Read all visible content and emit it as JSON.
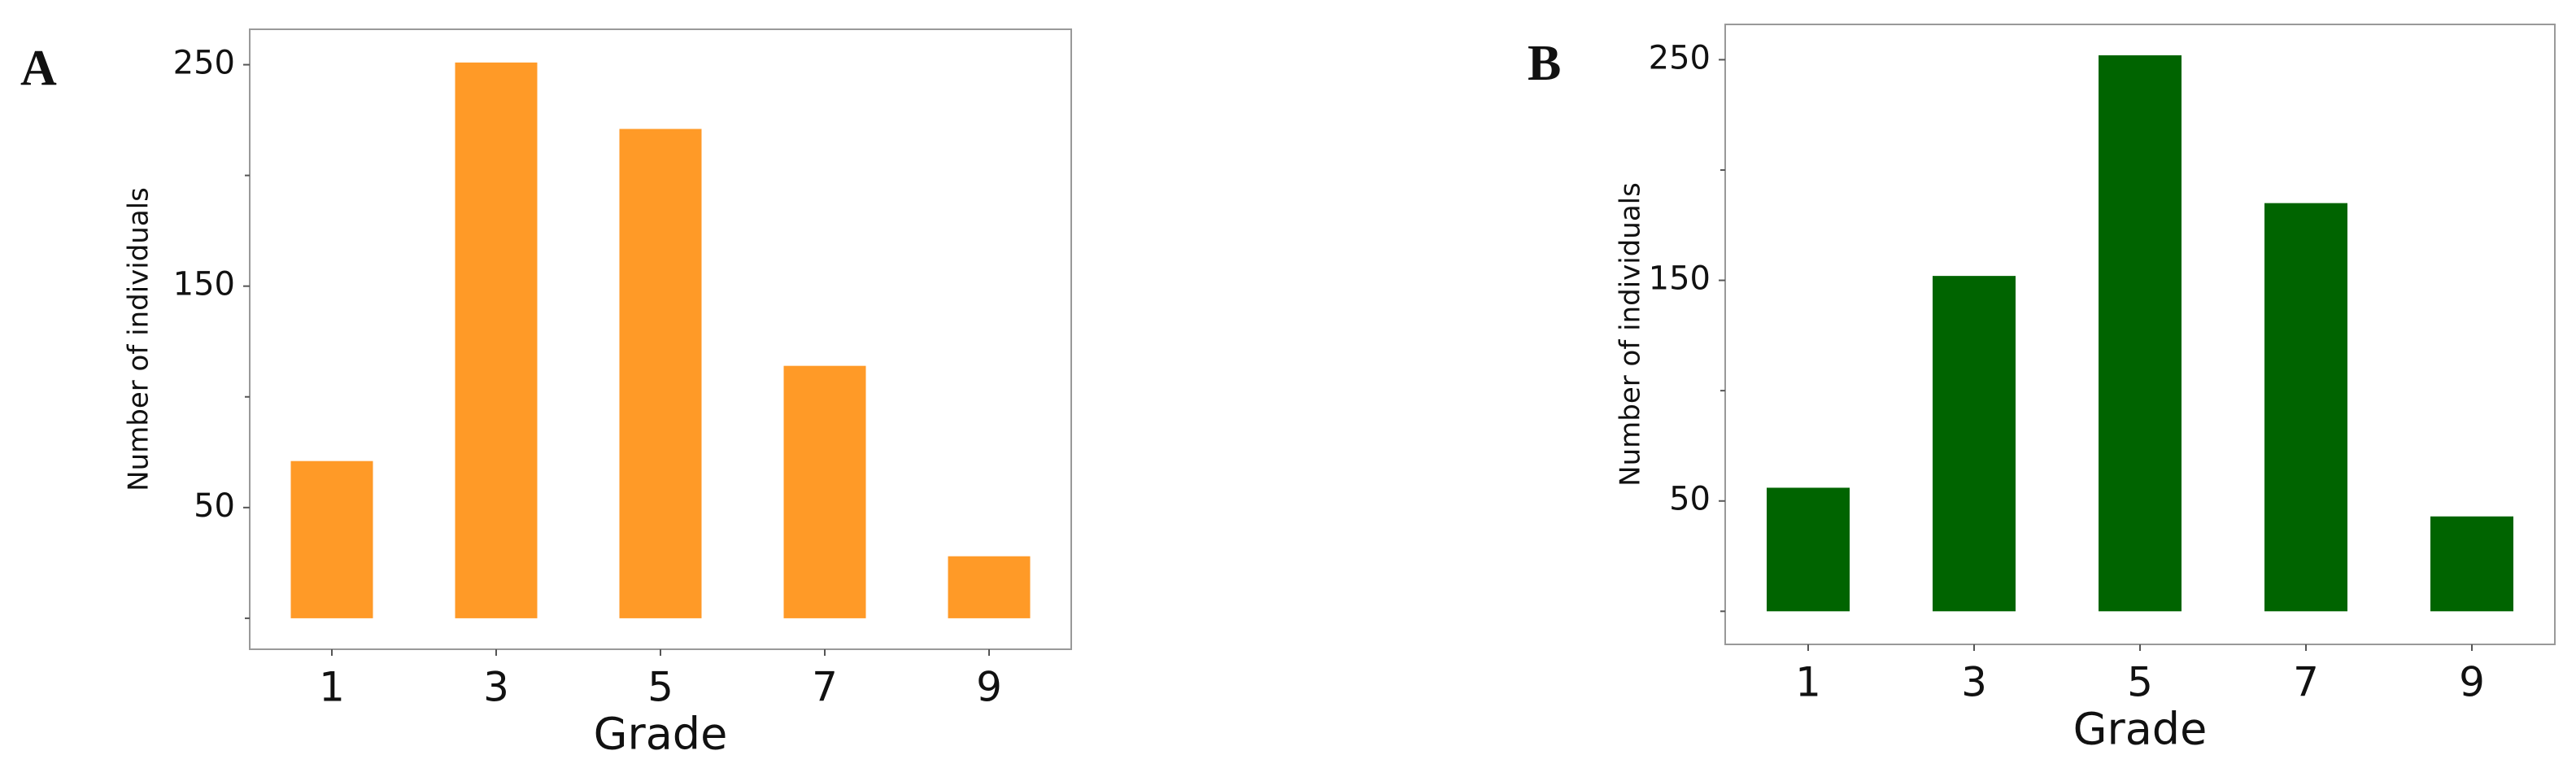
{
  "chart_data": [
    {
      "type": "bar",
      "panel_label": "A",
      "y_label": "Number of individuals",
      "x_label": "Grade",
      "categories": [
        "1",
        "3",
        "5",
        "7",
        "9"
      ],
      "values": [
        71,
        251,
        221,
        114,
        28
      ],
      "color": "#ff9a27",
      "ylim": [
        -14,
        266
      ],
      "yticks": [
        50,
        150,
        250
      ],
      "minor_yticks": [
        0,
        100,
        200
      ]
    },
    {
      "type": "bar",
      "panel_label": "B",
      "y_label": "Number of individuals",
      "x_label": "Grade",
      "categories": [
        "1",
        "3",
        "5",
        "7",
        "9"
      ],
      "values": [
        56,
        152,
        252,
        185,
        43
      ],
      "color": "#006400",
      "ylim": [
        -15,
        266
      ],
      "yticks": [
        50,
        150,
        250
      ],
      "minor_yticks": [
        0,
        100,
        200
      ]
    }
  ]
}
